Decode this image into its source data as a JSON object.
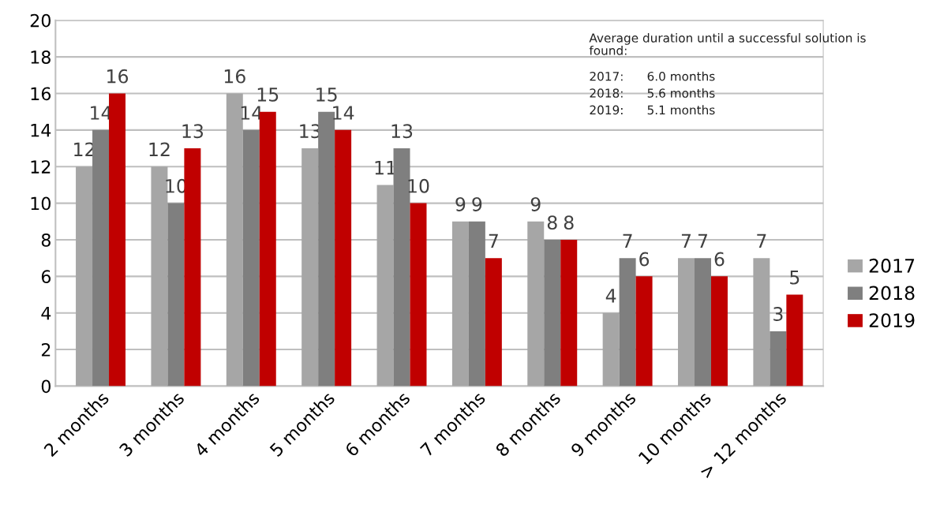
{
  "chart_data": {
    "type": "bar",
    "categories": [
      "2 months",
      "3 months",
      "4 months",
      "5 months",
      "6 months",
      "7 months",
      "8 months",
      "9 months",
      "10 months",
      "> 12 months"
    ],
    "series": [
      {
        "name": "2017",
        "color": "#a6a6a6",
        "values": [
          12,
          12,
          16,
          13,
          11,
          9,
          9,
          4,
          7,
          7
        ]
      },
      {
        "name": "2018",
        "color": "#7f7f7f",
        "values": [
          14,
          10,
          14,
          15,
          13,
          9,
          8,
          7,
          7,
          3
        ]
      },
      {
        "name": "2019",
        "color": "#c00000",
        "values": [
          16,
          13,
          15,
          14,
          10,
          7,
          8,
          6,
          6,
          5
        ]
      }
    ],
    "ylim": [
      0,
      20
    ],
    "yticks": [
      0,
      2,
      4,
      6,
      8,
      10,
      12,
      14,
      16,
      18,
      20
    ],
    "grid": "y",
    "legend": "right",
    "data_labels": true,
    "annotations": [
      "Average duration until a successful solution is found:",
      "2017:      6.0 months",
      "2018:      5.6 months",
      "2019:      5.1 months"
    ]
  }
}
